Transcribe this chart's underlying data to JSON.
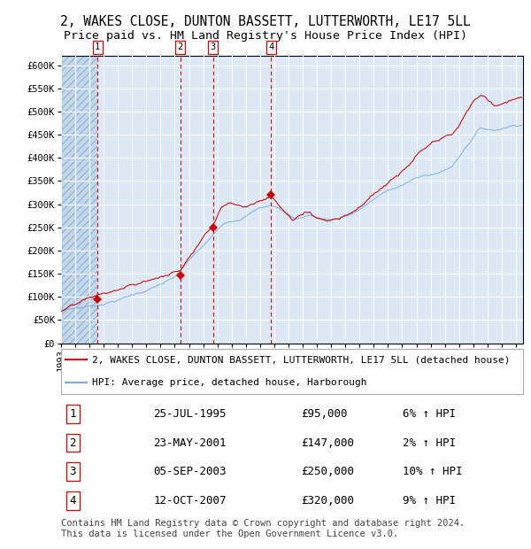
{
  "title": "2, WAKES CLOSE, DUNTON BASSETT, LUTTERWORTH, LE17 5LL",
  "subtitle": "Price paid vs. HM Land Registry's House Price Index (HPI)",
  "footer": "Contains HM Land Registry data © Crown copyright and database right 2024.\nThis data is licensed under the Open Government Licence v3.0.",
  "legend_label_red": "2, WAKES CLOSE, DUNTON BASSETT, LUTTERWORTH, LE17 5LL (detached house)",
  "legend_label_blue": "HPI: Average price, detached house, Harborough",
  "transactions": [
    {
      "num": 1,
      "date": "1995-07-25",
      "price": 95000,
      "label": "25-JUL-1995",
      "pct": "6%",
      "x_year": 1995.57
    },
    {
      "num": 2,
      "date": "2001-05-23",
      "price": 147000,
      "label": "23-MAY-2001",
      "pct": "2%",
      "x_year": 2001.39
    },
    {
      "num": 3,
      "date": "2003-09-05",
      "price": 250000,
      "label": "05-SEP-2003",
      "pct": "10%",
      "x_year": 2003.68
    },
    {
      "num": 4,
      "date": "2007-10-12",
      "price": 320000,
      "label": "12-OCT-2007",
      "pct": "9%",
      "x_year": 2007.78
    }
  ],
  "ylim": [
    0,
    620000
  ],
  "yticks": [
    0,
    50000,
    100000,
    150000,
    200000,
    250000,
    300000,
    350000,
    400000,
    450000,
    500000,
    550000,
    600000
  ],
  "xlim_start": 1993.0,
  "xlim_end": 2025.5,
  "hatch_end_year": 1995.57,
  "background_color": "#ffffff",
  "plot_bg_color": "#dce9f5",
  "grid_color": "#ffffff",
  "red_line_color": "#cc0000",
  "blue_line_color": "#7aace0",
  "red_dot_color": "#cc0000",
  "dashed_line_color": "#cc0000",
  "box_edge_color": "#cc0000",
  "title_fontsize": 10.5,
  "subtitle_fontsize": 9.5,
  "footer_fontsize": 7.5,
  "tick_fontsize": 7.5,
  "legend_fontsize": 8.0,
  "table_fontsize": 9.0
}
